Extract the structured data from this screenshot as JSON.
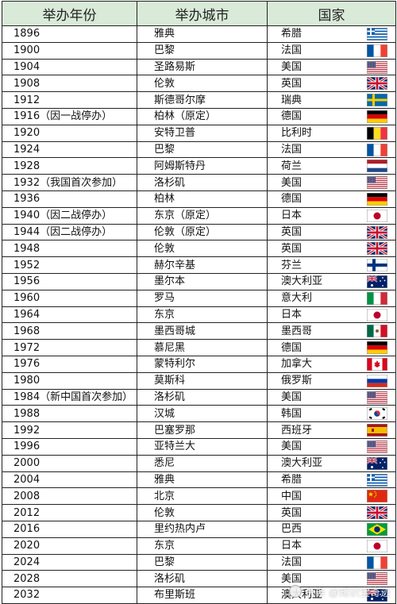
{
  "headers": [
    "举办年份",
    "举办城市",
    "国家"
  ],
  "rows": [
    {
      "year": "1896",
      "city": "雅典",
      "country": "希腊",
      "flag": "greece"
    },
    {
      "year": "1900",
      "city": "巴黎",
      "country": "法国",
      "flag": "france"
    },
    {
      "year": "1904",
      "city": "圣路易斯",
      "country": "美国",
      "flag": "usa"
    },
    {
      "year": "1908",
      "city": "伦敦",
      "country": "英国",
      "flag": "uk"
    },
    {
      "year": "1912",
      "city": "斯德哥尔摩",
      "country": "瑞典",
      "flag": "sweden"
    },
    {
      "year": "1916（因一战停办）",
      "city": "柏林（原定）",
      "country": "德国",
      "flag": "germany"
    },
    {
      "year": "1920",
      "city": "安特卫普",
      "country": "比利时",
      "flag": "belgium"
    },
    {
      "year": "1924",
      "city": "巴黎",
      "country": "法国",
      "flag": "france"
    },
    {
      "year": "1928",
      "city": "阿姆斯特丹",
      "country": "荷兰",
      "flag": "netherlands"
    },
    {
      "year": "1932（我国首次参加）",
      "city": "洛杉矶",
      "country": "美国",
      "flag": "usa"
    },
    {
      "year": "1936",
      "city": "柏林",
      "country": "德国",
      "flag": "germany"
    },
    {
      "year": "1940（因二战停办）",
      "city": "东京（原定）",
      "country": "日本",
      "flag": "japan"
    },
    {
      "year": "1944（因二战停办）",
      "city": "伦敦（原定）",
      "country": "英国",
      "flag": "uk"
    },
    {
      "year": "1948",
      "city": "伦敦",
      "country": "英国",
      "flag": "uk"
    },
    {
      "year": "1952",
      "city": "赫尔辛基",
      "country": "芬兰",
      "flag": "finland"
    },
    {
      "year": "1956",
      "city": "墨尔本",
      "country": "澳大利亚",
      "flag": "australia"
    },
    {
      "year": "1960",
      "city": "罗马",
      "country": "意大利",
      "flag": "italy"
    },
    {
      "year": "1964",
      "city": "东京",
      "country": "日本",
      "flag": "japan"
    },
    {
      "year": "1968",
      "city": "墨西哥城",
      "country": "墨西哥",
      "flag": "mexico"
    },
    {
      "year": "1972",
      "city": "慕尼黑",
      "country": "德国",
      "flag": "germany"
    },
    {
      "year": "1976",
      "city": "蒙特利尔",
      "country": "加拿大",
      "flag": "canada"
    },
    {
      "year": "1980",
      "city": "莫斯科",
      "country": "俄罗斯",
      "flag": "russia"
    },
    {
      "year": "1984（新中国首次参加）",
      "city": "洛杉矶",
      "country": "美国",
      "flag": "usa"
    },
    {
      "year": "1988",
      "city": "汉城",
      "country": "韩国",
      "flag": "korea"
    },
    {
      "year": "1992",
      "city": "巴塞罗那",
      "country": "西班牙",
      "flag": "spain"
    },
    {
      "year": "1996",
      "city": "亚特兰大",
      "country": "美国",
      "flag": "usa"
    },
    {
      "year": "2000",
      "city": "悉尼",
      "country": "澳大利亚",
      "flag": "australia"
    },
    {
      "year": "2004",
      "city": "雅典",
      "country": "希腊",
      "flag": "greece"
    },
    {
      "year": "2008",
      "city": "北京",
      "country": "中国",
      "flag": "china"
    },
    {
      "year": "2012",
      "city": "伦敦",
      "country": "英国",
      "flag": "uk"
    },
    {
      "year": "2016",
      "city": "里约热内卢",
      "country": "巴西",
      "flag": "brazil"
    },
    {
      "year": "2020",
      "city": "东京",
      "country": "日本",
      "flag": "japan"
    },
    {
      "year": "2024",
      "city": "巴黎",
      "country": "法国",
      "flag": "france"
    },
    {
      "year": "2028",
      "city": "洛杉矶",
      "country": "美国",
      "flag": "usa"
    },
    {
      "year": "2032",
      "city": "布里斯班",
      "country": "澳大利亚",
      "flag": "australia"
    }
  ],
  "colors": {
    "header_bg": "#d9ead8",
    "border": "#222222"
  },
  "watermark": "头条 @知识宝奇迹"
}
